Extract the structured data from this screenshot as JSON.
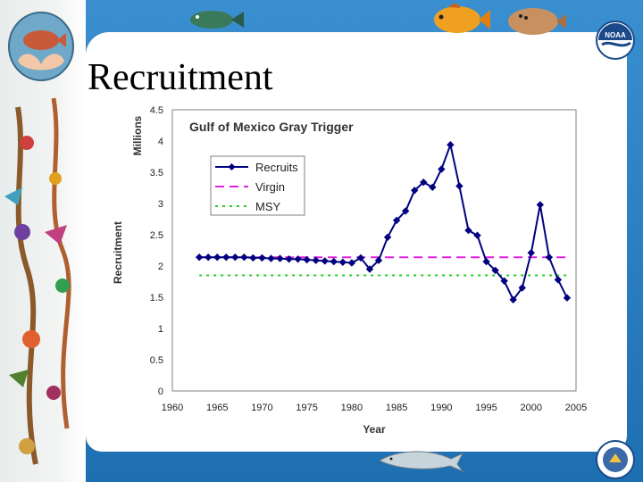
{
  "slide": {
    "title": "Recruitment"
  },
  "colors": {
    "recruits": "#000080",
    "virgin": "#e020e0",
    "msy": "#22cc22",
    "background": "#1e6fb2"
  },
  "icons": [
    "hands-fish-logo-icon",
    "noaa-logo-icon",
    "commerce-seal-icon",
    "fish-icon",
    "flounder-icon",
    "dolphin-icon",
    "coral-icon"
  ],
  "chart_data": {
    "type": "line",
    "title": "Gulf of Mexico Gray Trigger",
    "xlabel": "Year",
    "ylabel": "Recruitment",
    "ylabel_units": "Millions",
    "xlim": [
      1960,
      2005
    ],
    "ylim": [
      0,
      4.5
    ],
    "xticks": [
      1960,
      1965,
      1970,
      1975,
      1980,
      1985,
      1990,
      1995,
      2000,
      2005
    ],
    "yticks": [
      "0",
      "0.5",
      "1",
      "1.5",
      "2",
      "2.5",
      "3",
      "3.5",
      "4",
      "4.5"
    ],
    "grid": false,
    "legend": "top-left",
    "series": [
      {
        "name": "Recruits",
        "style": "line-diamond",
        "x": [
          1963,
          1964,
          1965,
          1966,
          1967,
          1968,
          1969,
          1970,
          1971,
          1972,
          1973,
          1974,
          1975,
          1976,
          1977,
          1978,
          1979,
          1980,
          1981,
          1982,
          1983,
          1984,
          1985,
          1986,
          1987,
          1988,
          1989,
          1990,
          1991,
          1992,
          1993,
          1994,
          1995,
          1996,
          1997,
          1998,
          1999,
          2000,
          2001,
          2002,
          2003,
          2004
        ],
        "y": [
          2.14,
          2.14,
          2.14,
          2.14,
          2.14,
          2.14,
          2.13,
          2.13,
          2.12,
          2.12,
          2.11,
          2.11,
          2.1,
          2.09,
          2.08,
          2.07,
          2.06,
          2.05,
          2.13,
          1.95,
          2.09,
          2.46,
          2.73,
          2.88,
          3.21,
          3.34,
          3.26,
          3.55,
          3.94,
          3.28,
          2.57,
          2.49,
          2.07,
          1.93,
          1.76,
          1.46,
          1.65,
          2.21,
          2.98,
          2.14,
          1.78,
          1.49
        ]
      },
      {
        "name": "Virgin",
        "style": "dashed",
        "x": [
          1963,
          2004
        ],
        "y": [
          2.14,
          2.14
        ]
      },
      {
        "name": "MSY",
        "style": "dotted",
        "x": [
          1963,
          2004
        ],
        "y": [
          1.85,
          1.85
        ]
      }
    ]
  }
}
